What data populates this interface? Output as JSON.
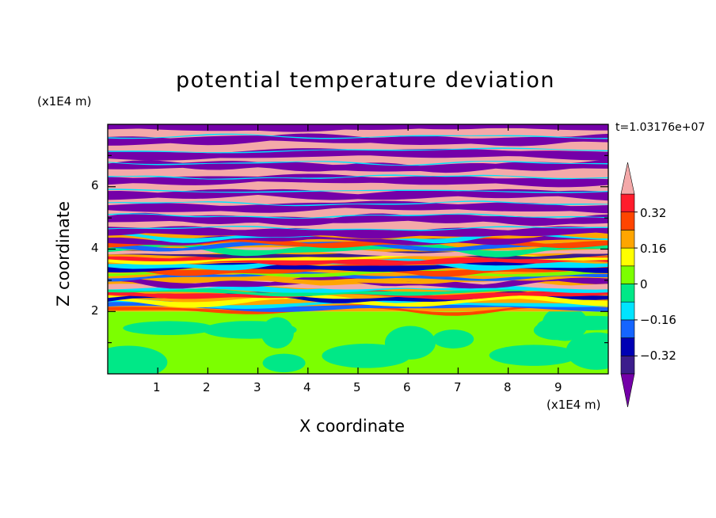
{
  "chart_data": {
    "type": "heatmap",
    "title": "potential temperature deviation",
    "xlabel": "X coordinate",
    "ylabel": "Z coordinate",
    "x_unit": "(x1E4 m)",
    "y_unit": "(x1E4 m)",
    "time_label": "t=1.03176e+07",
    "xlim": [
      0,
      10
    ],
    "ylim": [
      0,
      8
    ],
    "x_ticks": [
      "1",
      "2",
      "3",
      "4",
      "5",
      "6",
      "7",
      "8",
      "9"
    ],
    "y_ticks": [
      "2",
      "4",
      "6"
    ],
    "colorbar": {
      "levels": [
        -0.4,
        -0.32,
        -0.24,
        -0.16,
        -0.08,
        0,
        0.08,
        0.16,
        0.24,
        0.32,
        0.4
      ],
      "labels": [
        "0.32",
        "0.16",
        "0",
        "−0.16",
        "−0.32"
      ],
      "colors": [
        "#7400a8",
        "#3c1d8c",
        "#0000b4",
        "#1565ff",
        "#00e4ff",
        "#00e887",
        "#7cff00",
        "#ffff00",
        "#ffa500",
        "#ff4500",
        "#ff1c2c",
        "#f4a9a9"
      ],
      "extend": "both"
    },
    "regions": [
      {
        "z_range": [
          0,
          2
        ],
        "description": "mostly near-zero values (green/light green)"
      },
      {
        "z_range": [
          2,
          4.5
        ],
        "description": "highly turbulent layered mixing, full range of values"
      },
      {
        "z_range": [
          4.5,
          8
        ],
        "description": "alternating horizontal bands of strongly positive (pink) and strongly negative (purple)"
      }
    ]
  }
}
